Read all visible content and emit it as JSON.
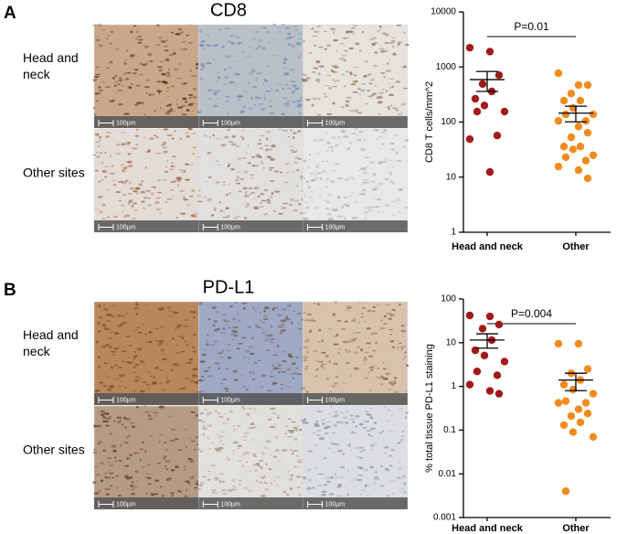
{
  "figure": {
    "panels": [
      {
        "label": "A",
        "stain": "CD8",
        "row_labels": [
          "Head and neck",
          "Other sites"
        ],
        "scale_bar": "100µm"
      },
      {
        "label": "B",
        "stain": "PD-L1",
        "row_labels": [
          "Head and neck",
          "Other sites"
        ],
        "scale_bar": "100µm"
      }
    ]
  },
  "chart_data": [
    {
      "type": "scatter",
      "y_label": "CD8 T cells/mm^2",
      "annotation": "P=0.01",
      "log_scale": true,
      "ylim": [
        1,
        10000
      ],
      "yticks": [
        1,
        10,
        100,
        1000,
        10000
      ],
      "categories": [
        "Head and neck",
        "Other"
      ],
      "series": [
        {
          "color": "#a31a1a",
          "values": [
            2240,
            1900,
            710,
            490,
            360,
            265,
            200,
            155,
            155,
            57,
            49,
            12.4
          ],
          "mean": 590,
          "error": [
            360,
            830
          ]
        },
        {
          "color": "#f08c1e",
          "values": [
            770,
            470,
            470,
            330,
            245,
            245,
            180,
            138,
            138,
            105,
            105,
            83,
            64,
            53,
            36,
            36,
            32,
            25,
            23,
            20,
            15.6,
            13.4,
            9.5
          ],
          "mean": 145,
          "error": [
            101,
            194
          ]
        }
      ]
    },
    {
      "type": "scatter",
      "y_label": "% total tissue PD-L1 staining",
      "annotation": "P=0.004",
      "log_scale": true,
      "ylim": [
        0.001,
        100
      ],
      "yticks": [
        0.001,
        0.01,
        0.1,
        1,
        10,
        100
      ],
      "categories": [
        "Head and neck",
        "Other"
      ],
      "series": [
        {
          "color": "#a31a1a",
          "values": [
            42,
            40,
            26,
            21,
            11.5,
            6.7,
            5.1,
            3.7,
            2.2,
            1.8,
            1.1,
            0.79,
            0.68
          ],
          "mean": 11.5,
          "error": [
            7.5,
            16
          ]
        },
        {
          "color": "#f08c1e",
          "values": [
            9.5,
            9.5,
            2.5,
            2.0,
            1.4,
            1.1,
            0.85,
            0.68,
            0.46,
            0.42,
            0.42,
            0.3,
            0.24,
            0.21,
            0.15,
            0.13,
            0.09,
            0.07,
            0.004
          ],
          "mean": 1.4,
          "error": [
            0.8,
            2.0
          ]
        }
      ]
    }
  ]
}
